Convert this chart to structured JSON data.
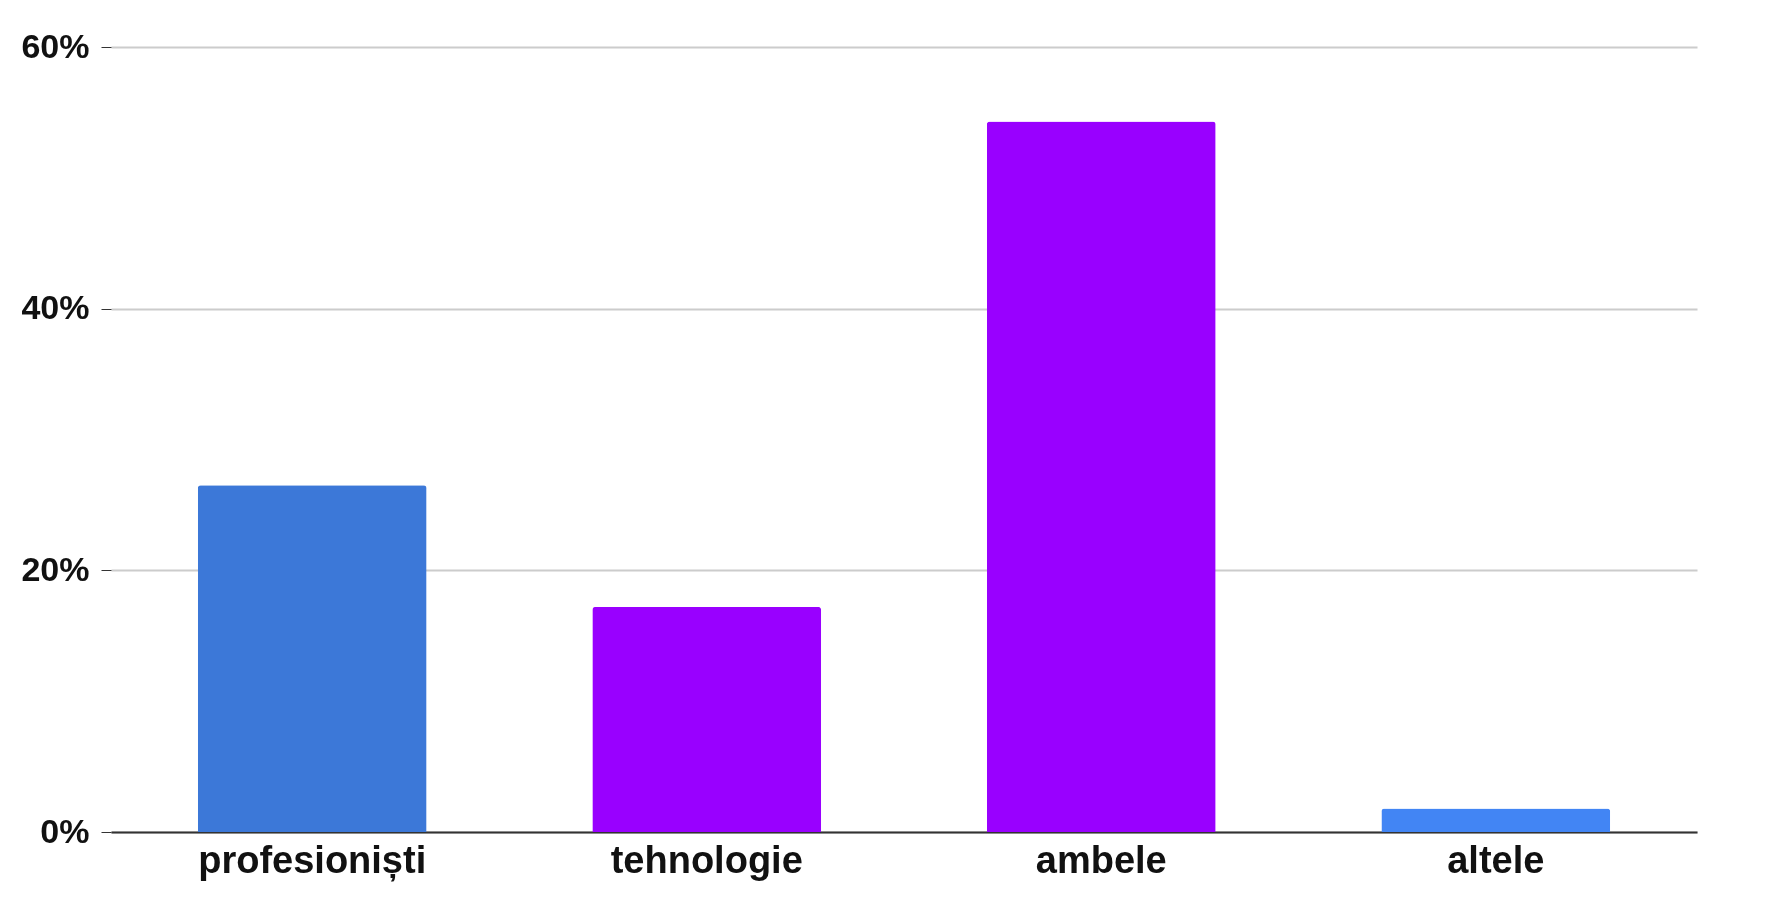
{
  "chart_data": {
    "type": "bar",
    "categories": [
      "profesioniști",
      "tehnologie",
      "ambele",
      "altele"
    ],
    "values": [
      26.5,
      17.2,
      54.3,
      1.8
    ],
    "colors": [
      "#3c78d8",
      "#9900ff",
      "#9900ff",
      "#4285f4"
    ],
    "ylim": [
      0,
      60
    ],
    "yticks": [
      {
        "value": 0,
        "label": "0%"
      },
      {
        "value": 20,
        "label": "20%"
      },
      {
        "value": 40,
        "label": "40%"
      },
      {
        "value": 60,
        "label": "60%"
      }
    ],
    "grid": "y"
  }
}
